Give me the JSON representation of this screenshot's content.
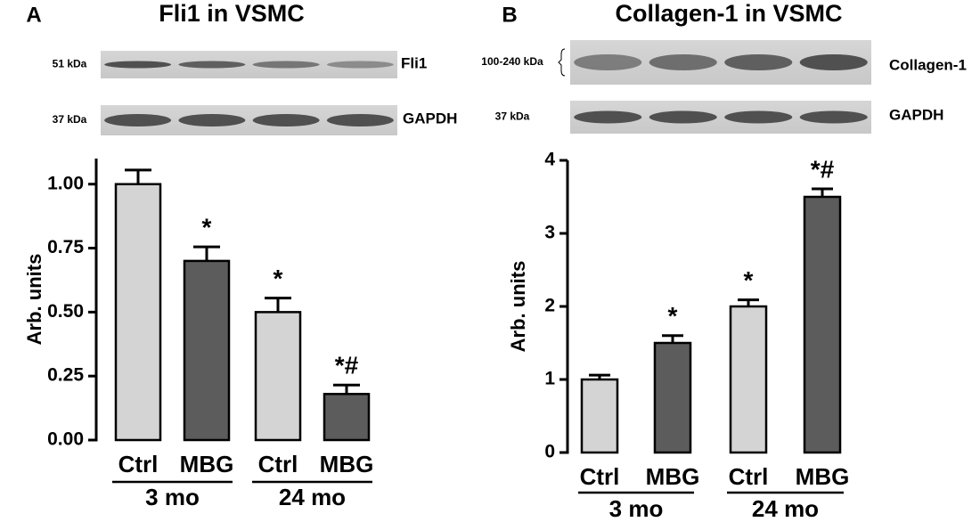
{
  "chart_data": [
    {
      "type": "bar",
      "panel": "A",
      "title": "Fli1 in VSMC",
      "ylabel": "Arb. units",
      "blots": [
        {
          "marker": "51 kDa",
          "label": "Fli1"
        },
        {
          "marker": "37 kDa",
          "label": "GAPDH"
        }
      ],
      "categories": [
        "Ctrl",
        "MBG",
        "Ctrl",
        "MBG"
      ],
      "groups": [
        "3 mo",
        "24 mo"
      ],
      "values": [
        1.0,
        0.7,
        0.5,
        0.18
      ],
      "errors": [
        0.055,
        0.055,
        0.055,
        0.035
      ],
      "annotations": [
        null,
        "*",
        "*",
        "*#"
      ],
      "colors": [
        "#d4d4d4",
        "#5c5c5c",
        "#d4d4d4",
        "#5c5c5c"
      ],
      "ylim": [
        0,
        1.1
      ],
      "yticks": [
        {
          "value": 0,
          "label": "0.00"
        },
        0.25,
        {
          "value": 0.5,
          "label": "0.50"
        },
        0.75,
        {
          "value": 1,
          "label": "1.00"
        }
      ]
    },
    {
      "type": "bar",
      "panel": "B",
      "title": "Collagen-1 in VSMC",
      "ylabel": "Arb. units",
      "blots": [
        {
          "marker": "100-240 kDa",
          "label": "Collagen-1"
        },
        {
          "marker": "37 kDa",
          "label": "GAPDH"
        }
      ],
      "categories": [
        "Ctrl",
        "MBG",
        "Ctrl",
        "MBG"
      ],
      "groups": [
        "3 mo",
        "24 mo"
      ],
      "values": [
        1.0,
        1.5,
        2.0,
        3.5
      ],
      "errors": [
        0.06,
        0.1,
        0.09,
        0.11
      ],
      "annotations": [
        null,
        "*",
        "*",
        "*#"
      ],
      "colors": [
        "#d4d4d4",
        "#5c5c5c",
        "#d4d4d4",
        "#5c5c5c"
      ],
      "ylim": [
        0,
        4
      ],
      "yticks": [
        0,
        1,
        2,
        3,
        4
      ]
    }
  ]
}
